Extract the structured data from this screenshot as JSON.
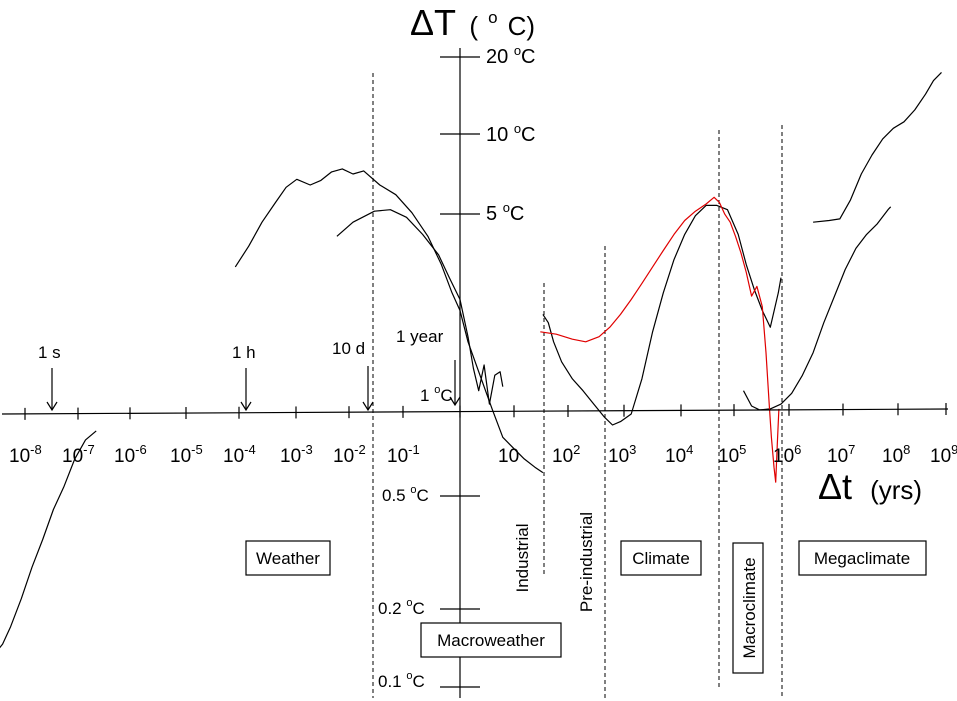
{
  "chart_data": {
    "type": "line",
    "title": "",
    "x_axis": {
      "label_symbol": "Δt",
      "label_unit": "(yrs)",
      "scale": "log",
      "ticks": [
        {
          "mant": "10",
          "exp": "-8"
        },
        {
          "mant": "10",
          "exp": "-7"
        },
        {
          "mant": "10",
          "exp": "-6"
        },
        {
          "mant": "10",
          "exp": "-5"
        },
        {
          "mant": "10",
          "exp": "-4"
        },
        {
          "mant": "10",
          "exp": "-3"
        },
        {
          "mant": "10",
          "exp": "-2"
        },
        {
          "mant": "10",
          "exp": "-1"
        },
        {
          "mant": "",
          "exp": ""
        },
        {
          "mant": "10",
          "exp": ""
        },
        {
          "mant": "10",
          "exp": "2"
        },
        {
          "mant": "10",
          "exp": "3"
        },
        {
          "mant": "10",
          "exp": "4"
        },
        {
          "mant": "10",
          "exp": "5"
        },
        {
          "mant": "10",
          "exp": "6"
        },
        {
          "mant": "10",
          "exp": "7"
        },
        {
          "mant": "10",
          "exp": "8"
        },
        {
          "mant": "10",
          "exp": "9"
        }
      ]
    },
    "y_axis": {
      "label_symbol": "ΔT",
      "label_unit_open": "(",
      "label_unit_sup": "o",
      "label_unit_close": "C)",
      "scale": "log",
      "ticks": [
        {
          "value": 20,
          "num": "20 ",
          "unit": "C"
        },
        {
          "value": 10,
          "num": "10 ",
          "unit": "C"
        },
        {
          "value": 5,
          "num": "5 ",
          "unit": "C"
        },
        {
          "value": 1,
          "num": "1 ",
          "unit": "C"
        },
        {
          "value": 0.5,
          "num": "0.5 ",
          "unit": "C"
        },
        {
          "value": 0.2,
          "num": "0.2 ",
          "unit": "C"
        },
        {
          "value": 0.1,
          "num": "0.1 ",
          "unit": "C"
        }
      ]
    },
    "timescale_markers": [
      {
        "label": "1 s",
        "log_t": -7.5
      },
      {
        "label": "1 h",
        "log_t": -4.06
      },
      {
        "label": "10 d",
        "log_t": -1.56
      },
      {
        "label": "1 year",
        "log_t": 0
      }
    ],
    "regime_boundaries": [
      {
        "log_t": -1.56
      },
      {
        "log_t": 1.5
      },
      {
        "log_t": 2.62
      },
      {
        "log_t": 4.8
      },
      {
        "log_t": 6.0
      }
    ],
    "regimes": [
      {
        "label": "Weather",
        "orientation": "horizontal"
      },
      {
        "label": "Macroweather",
        "orientation": "horizontal"
      },
      {
        "label": "Industrial",
        "orientation": "vertical"
      },
      {
        "label": "Pre-industrial",
        "orientation": "vertical"
      },
      {
        "label": "Climate",
        "orientation": "horizontal"
      },
      {
        "label": "Macroclimate",
        "orientation": "vertical",
        "boxed": true
      },
      {
        "label": "Megaclimate",
        "orientation": "horizontal"
      }
    ],
    "colors": {
      "axes": "#000000",
      "black_series": "#000000",
      "red_series": "#e00000"
    },
    "series": [
      {
        "color": "#000000",
        "points": [
          [
            -8.85,
            0.1
          ],
          [
            -8.7,
            0.1
          ],
          [
            -8.55,
            0.11
          ],
          [
            -8.4,
            0.13
          ],
          [
            -8.2,
            0.17
          ],
          [
            -8.0,
            0.23
          ],
          [
            -7.8,
            0.3
          ],
          [
            -7.6,
            0.4
          ],
          [
            -7.4,
            0.5
          ],
          [
            -7.2,
            0.65
          ],
          [
            -7.0,
            0.78
          ],
          [
            -6.8,
            0.85
          ]
        ]
      },
      {
        "color": "#000000",
        "points": [
          [
            -4.2,
            4.1
          ],
          [
            -3.95,
            5.0
          ],
          [
            -3.7,
            6.3
          ],
          [
            -3.45,
            7.6
          ],
          [
            -3.25,
            8.8
          ],
          [
            -3.05,
            9.5
          ],
          [
            -2.8,
            9.0
          ],
          [
            -2.6,
            9.4
          ],
          [
            -2.4,
            10.2
          ],
          [
            -2.2,
            10.5
          ],
          [
            -2.0,
            10.0
          ],
          [
            -1.8,
            10.3
          ],
          [
            -1.5,
            9.0
          ],
          [
            -1.2,
            8.2
          ],
          [
            -0.9,
            6.9
          ],
          [
            -0.6,
            5.5
          ],
          [
            -0.35,
            4.2
          ],
          [
            -0.15,
            3.2
          ],
          [
            0.0,
            2.7
          ],
          [
            0.15,
            2.0
          ],
          [
            0.35,
            1.5
          ],
          [
            0.6,
            1.05
          ],
          [
            0.8,
            0.8
          ],
          [
            1.0,
            0.72
          ],
          [
            1.2,
            0.65
          ],
          [
            1.4,
            0.6
          ],
          [
            1.55,
            0.57
          ]
        ]
      },
      {
        "color": "#000000",
        "points": [
          [
            -2.3,
            5.5
          ],
          [
            -2.0,
            6.3
          ],
          [
            -1.6,
            7.0
          ],
          [
            -1.3,
            7.1
          ],
          [
            -1.0,
            6.6
          ],
          [
            -0.7,
            5.6
          ],
          [
            -0.4,
            4.6
          ],
          [
            -0.2,
            3.7
          ],
          [
            0.0,
            3.0
          ],
          [
            0.15,
            2.1
          ],
          [
            0.25,
            1.55
          ],
          [
            0.35,
            1.25
          ],
          [
            0.45,
            1.6
          ],
          [
            0.55,
            1.1
          ],
          [
            0.65,
            1.45
          ],
          [
            0.75,
            1.5
          ],
          [
            0.8,
            1.3
          ]
        ]
      },
      {
        "color": "#000000",
        "points": [
          [
            1.55,
            2.6
          ],
          [
            1.65,
            2.4
          ],
          [
            1.75,
            2.0
          ],
          [
            1.9,
            1.65
          ],
          [
            2.1,
            1.4
          ],
          [
            2.3,
            1.25
          ],
          [
            2.5,
            1.1
          ],
          [
            2.7,
            0.97
          ],
          [
            2.85,
            0.9
          ],
          [
            3.0,
            0.93
          ],
          [
            3.2,
            1.0
          ],
          [
            3.4,
            1.4
          ],
          [
            3.6,
            2.2
          ],
          [
            3.8,
            3.2
          ],
          [
            4.0,
            4.4
          ],
          [
            4.2,
            5.6
          ],
          [
            4.4,
            6.7
          ],
          [
            4.6,
            7.4
          ],
          [
            4.8,
            7.4
          ],
          [
            5.0,
            7.1
          ],
          [
            5.2,
            5.6
          ],
          [
            5.35,
            4.2
          ],
          [
            5.5,
            3.3
          ],
          [
            5.65,
            2.7
          ],
          [
            5.8,
            2.3
          ],
          [
            5.95,
            3.2
          ],
          [
            6.0,
            3.7
          ]
        ]
      },
      {
        "color": "#000000",
        "points": [
          [
            5.3,
            1.25
          ],
          [
            5.45,
            1.08
          ],
          [
            5.6,
            1.04
          ],
          [
            5.8,
            1.05
          ],
          [
            6.0,
            1.1
          ],
          [
            6.2,
            1.22
          ],
          [
            6.4,
            1.45
          ],
          [
            6.6,
            1.8
          ],
          [
            6.8,
            2.4
          ],
          [
            7.0,
            3.1
          ],
          [
            7.2,
            4.0
          ],
          [
            7.4,
            4.9
          ],
          [
            7.6,
            5.6
          ],
          [
            7.8,
            6.2
          ],
          [
            8.0,
            7.1
          ],
          [
            8.05,
            7.3
          ]
        ]
      },
      {
        "color": "#000000",
        "points": [
          [
            6.6,
            6.3
          ],
          [
            6.9,
            6.4
          ],
          [
            7.1,
            6.5
          ],
          [
            7.3,
            7.8
          ],
          [
            7.5,
            10.0
          ],
          [
            7.7,
            12.0
          ],
          [
            7.9,
            14.0
          ],
          [
            8.1,
            15.5
          ],
          [
            8.3,
            16.5
          ],
          [
            8.5,
            18.5
          ],
          [
            8.7,
            21.5
          ],
          [
            8.85,
            24.5
          ],
          [
            9.0,
            26.5
          ]
        ]
      },
      {
        "color": "#e00000",
        "points": [
          [
            1.5,
            2.2
          ],
          [
            1.8,
            2.15
          ],
          [
            2.1,
            2.05
          ],
          [
            2.35,
            2.0
          ],
          [
            2.6,
            2.1
          ],
          [
            2.8,
            2.3
          ],
          [
            3.0,
            2.6
          ],
          [
            3.2,
            3.0
          ],
          [
            3.4,
            3.5
          ],
          [
            3.6,
            4.1
          ],
          [
            3.8,
            4.8
          ],
          [
            4.0,
            5.6
          ],
          [
            4.2,
            6.4
          ],
          [
            4.4,
            7.0
          ],
          [
            4.6,
            7.5
          ],
          [
            4.75,
            8.0
          ],
          [
            4.85,
            7.6
          ],
          [
            4.95,
            6.8
          ],
          [
            5.05,
            6.3
          ],
          [
            5.15,
            5.5
          ],
          [
            5.25,
            4.7
          ],
          [
            5.35,
            3.9
          ],
          [
            5.45,
            3.1
          ],
          [
            5.55,
            3.4
          ],
          [
            5.65,
            2.8
          ],
          [
            5.72,
            1.8
          ],
          [
            5.78,
            1.1
          ],
          [
            5.82,
            0.8
          ],
          [
            5.87,
            0.6
          ],
          [
            5.9,
            0.52
          ],
          [
            5.93,
            0.75
          ],
          [
            5.96,
            1.05
          ]
        ]
      }
    ]
  }
}
